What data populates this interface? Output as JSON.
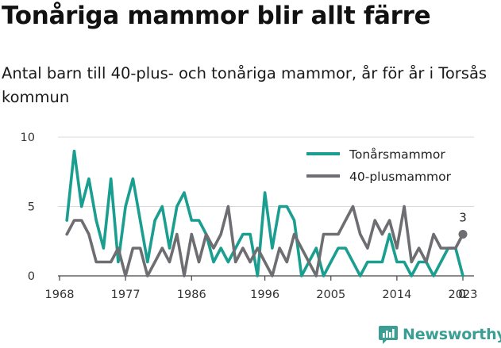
{
  "header": {
    "title": "Tonåriga mammor blir allt färre",
    "subtitle": "Antal barn till 40-plus- och tonåriga mammor, år för år i Torsås kommun"
  },
  "brand": {
    "name": "Newsworthy",
    "color": "#3a9e94"
  },
  "chart_data": {
    "type": "line",
    "title": "Tonåriga mammor blir allt färre",
    "subtitle": "Antal barn till 40-plus- och tonåriga mammor, år för år i Torsås kommun",
    "xlabel": "",
    "ylabel": "",
    "x": [
      1969,
      1970,
      1971,
      1972,
      1973,
      1974,
      1975,
      1976,
      1977,
      1978,
      1979,
      1980,
      1981,
      1982,
      1983,
      1984,
      1985,
      1986,
      1987,
      1988,
      1989,
      1990,
      1991,
      1992,
      1993,
      1994,
      1995,
      1996,
      1997,
      1998,
      1999,
      2000,
      2001,
      2002,
      2003,
      2004,
      2005,
      2006,
      2007,
      2008,
      2009,
      2010,
      2011,
      2012,
      2013,
      2014,
      2015,
      2016,
      2017,
      2018,
      2019,
      2020,
      2021,
      2022,
      2023
    ],
    "xticks": [
      "1968",
      "1977",
      "1986",
      "1996",
      "2005",
      "2014",
      "2023"
    ],
    "xlim": [
      1968,
      2023
    ],
    "yticks": [
      "0",
      "5",
      "10"
    ],
    "ylim": [
      0,
      10
    ],
    "grid": "horizontal",
    "legend_position": "top-right",
    "series": [
      {
        "name": "Tonårsmammor",
        "color": "#1a9e90",
        "values": [
          4,
          9,
          5,
          7,
          4,
          2,
          7,
          1,
          5,
          7,
          4,
          1,
          4,
          5,
          2,
          5,
          6,
          4,
          4,
          3,
          1,
          2,
          1,
          2,
          3,
          3,
          0,
          6,
          2,
          5,
          5,
          4,
          0,
          1,
          2,
          0,
          1,
          2,
          2,
          1,
          0,
          1,
          1,
          1,
          3,
          1,
          1,
          0,
          1,
          1,
          0,
          1,
          2,
          2,
          0
        ]
      },
      {
        "name": "40-plusmammor",
        "color": "#6d6d72",
        "values": [
          3,
          4,
          4,
          3,
          1,
          1,
          1,
          2,
          0,
          2,
          2,
          0,
          1,
          2,
          1,
          3,
          0,
          3,
          1,
          3,
          2,
          3,
          5,
          1,
          2,
          1,
          2,
          1,
          0,
          2,
          1,
          3,
          2,
          1,
          0,
          3,
          3,
          3,
          4,
          5,
          3,
          2,
          4,
          3,
          4,
          2,
          5,
          1,
          2,
          1,
          3,
          2,
          2,
          2,
          3
        ]
      }
    ],
    "end_labels": [
      "3",
      "0"
    ]
  }
}
